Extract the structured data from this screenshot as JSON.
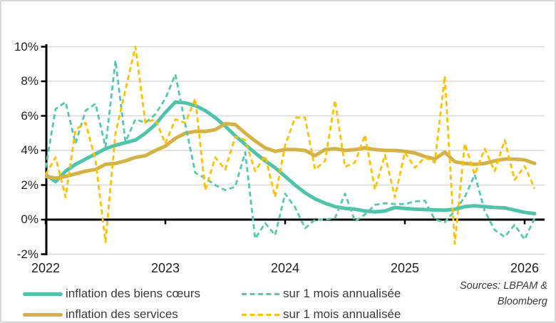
{
  "chart_data": {
    "type": "line",
    "title": "",
    "x_unit": "month",
    "x_start": "2022-01",
    "x_end": "2026-02",
    "n_points": 50,
    "x_tick_labels": [
      "2022",
      "2023",
      "2024",
      "2025",
      "2026"
    ],
    "x_tick_months": [
      0,
      12,
      24,
      36,
      48
    ],
    "y_ticks": [
      10,
      8,
      6,
      4,
      2,
      0,
      -2
    ],
    "y_tick_labels": [
      "10%",
      "8%",
      "6%",
      "4%",
      "2%",
      "0%",
      "-2%"
    ],
    "ylim": [
      -2,
      10
    ],
    "grid": "horizontal",
    "gridline_color": "#d9d9d9",
    "axis_color": "#000000",
    "legend_position": "bottom",
    "series": [
      {
        "name": "inflation des biens cœurs",
        "style": "solid",
        "color": "#4fc4ab",
        "values": [
          2.6,
          2.2,
          2.8,
          3.2,
          3.5,
          3.8,
          4.1,
          4.3,
          4.45,
          4.6,
          5.0,
          5.5,
          6.2,
          6.8,
          6.75,
          6.6,
          6.3,
          5.9,
          5.4,
          4.85,
          4.35,
          3.85,
          3.4,
          3.0,
          2.5,
          2.0,
          1.55,
          1.2,
          0.95,
          0.75,
          0.65,
          0.6,
          0.5,
          0.45,
          0.5,
          0.7,
          0.65,
          0.6,
          0.58,
          0.56,
          0.55,
          0.6,
          0.75,
          0.8,
          0.75,
          0.7,
          0.68,
          0.55,
          0.42,
          0.35
        ]
      },
      {
        "name": "inflation des services",
        "style": "solid",
        "color": "#d5b246",
        "values": [
          2.5,
          2.4,
          2.5,
          2.65,
          2.8,
          2.9,
          3.2,
          3.25,
          3.4,
          3.6,
          3.7,
          4.0,
          4.25,
          4.7,
          5.0,
          5.1,
          5.1,
          5.2,
          5.55,
          5.5,
          5.0,
          4.55,
          4.15,
          3.95,
          4.05,
          4.05,
          4.0,
          3.7,
          4.05,
          4.1,
          4.0,
          4.05,
          4.15,
          4.05,
          4.0,
          4.0,
          3.95,
          3.85,
          3.65,
          3.5,
          3.9,
          3.35,
          3.25,
          3.2,
          3.25,
          3.4,
          3.5,
          3.5,
          3.45,
          3.25
        ]
      },
      {
        "name": "sur 1 mois annualisée",
        "style": "dashed",
        "color": "#55c8b0",
        "values": [
          3.0,
          6.4,
          6.8,
          4.4,
          6.3,
          6.7,
          4.2,
          9.2,
          4.5,
          5.8,
          5.6,
          6.1,
          7.0,
          8.4,
          5.5,
          2.7,
          2.4,
          2.0,
          1.7,
          1.9,
          3.9,
          -1.1,
          -0.2,
          -0.9,
          1.5,
          0.7,
          -0.5,
          0.0,
          0.0,
          0.1,
          1.5,
          -0.1,
          0.3,
          0.85,
          0.95,
          0.9,
          0.9,
          1.05,
          1.1,
          0.0,
          -0.15,
          0.5,
          1.3,
          2.6,
          0.5,
          -0.6,
          -1.0,
          -0.3,
          -1.15,
          0.1
        ]
      },
      {
        "name": "sur 1 mois annualisée",
        "style": "dashed",
        "color": "#ffc000",
        "values": [
          2.6,
          3.6,
          1.3,
          5.2,
          5.6,
          3.45,
          -1.3,
          5.0,
          7.5,
          10.0,
          5.6,
          5.8,
          4.4,
          5.8,
          5.6,
          7.0,
          1.7,
          3.6,
          2.9,
          4.8,
          4.6,
          2.8,
          3.7,
          1.3,
          4.3,
          5.9,
          5.9,
          2.9,
          3.4,
          6.9,
          3.05,
          3.3,
          4.9,
          1.75,
          3.75,
          1.3,
          3.9,
          3.0,
          3.6,
          3.3,
          8.3,
          -1.4,
          4.4,
          2.6,
          4.1,
          2.8,
          4.6,
          2.3,
          3.1,
          1.8
        ]
      }
    ],
    "legend": [
      {
        "label": "inflation des biens cœurs",
        "series": 0,
        "style": "solid"
      },
      {
        "label": "sur 1 mois annualisée",
        "series": 2,
        "style": "dashed"
      },
      {
        "label": "inflation des services",
        "series": 1,
        "style": "solid"
      },
      {
        "label": "sur 1 mois annualisée",
        "series": 3,
        "style": "dashed"
      }
    ],
    "source_note": [
      "Sources: LBPAM &",
      "Bloomberg"
    ]
  }
}
